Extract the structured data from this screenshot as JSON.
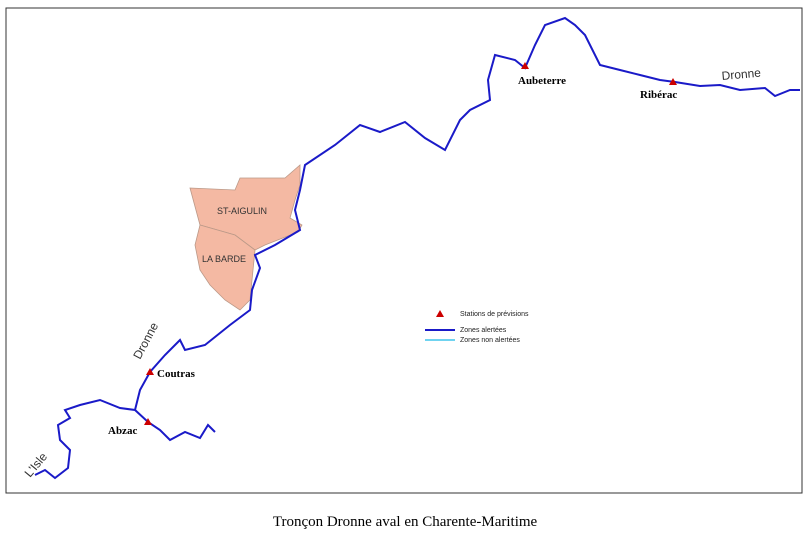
{
  "caption": "Tronçon Dronne aval en Charente-Maritime",
  "stations": [
    "Aubeterre",
    "Ribérac",
    "Coutras",
    "Abzac"
  ],
  "zones": [
    "ST-AIGULIN",
    "LA BARDE"
  ],
  "rivers": [
    "Dronne",
    "Dronne",
    "L'Isle"
  ],
  "legend": [
    "Stations de prévisions",
    "Zones alertées",
    "Zones non alertées"
  ]
}
